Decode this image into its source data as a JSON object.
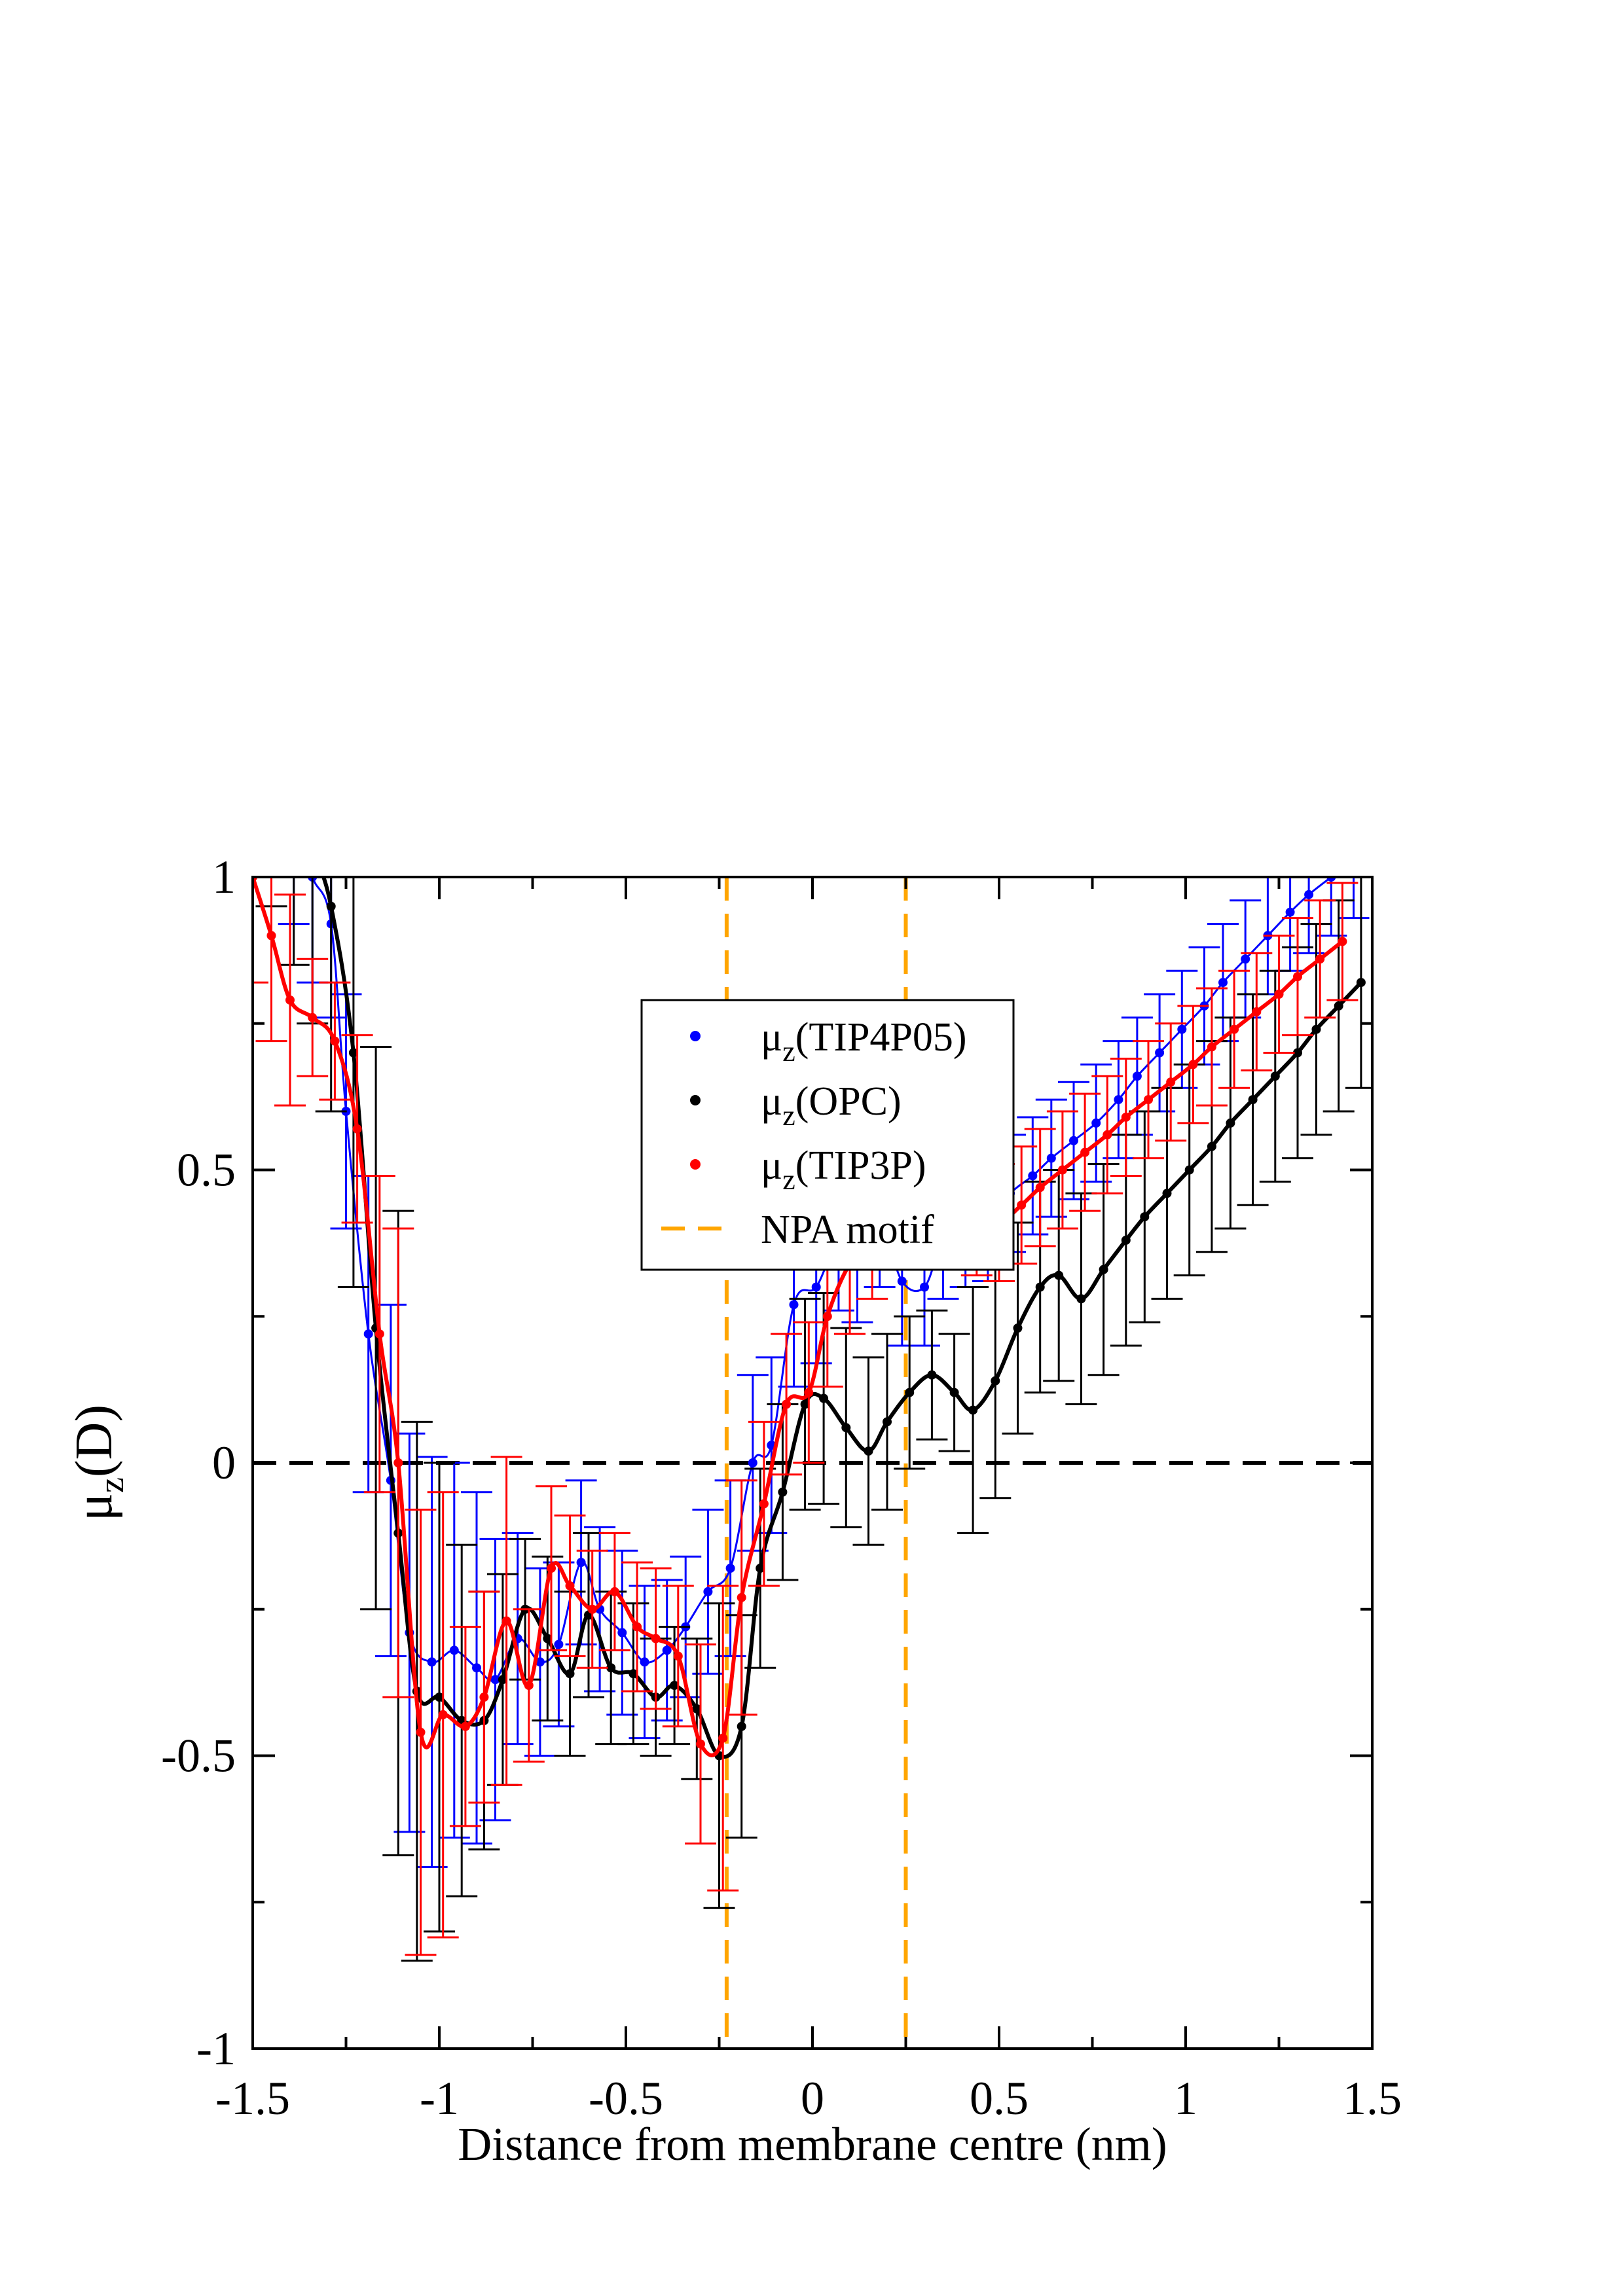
{
  "chart_data": {
    "type": "line",
    "xlabel": "Distance from membrane centre (nm)",
    "ylabel": {
      "mu": "μ",
      "sub": "z",
      "rest": "(D)"
    },
    "xlim": [
      -1.5,
      1.5
    ],
    "ylim": [
      -1,
      1
    ],
    "x_ticks": [
      -1.5,
      -1,
      -0.5,
      0,
      0.5,
      1,
      1.5
    ],
    "x_tick_labels": [
      "-1.5",
      "-1",
      "-0.5",
      "0",
      "0.5",
      "1",
      "1.5"
    ],
    "y_ticks": [
      -1,
      -0.5,
      0,
      0.5,
      1
    ],
    "y_tick_labels": [
      "-1",
      "-0.5",
      "0",
      "0.5",
      "1"
    ],
    "zero_line": {
      "y": 0,
      "style": "dashed",
      "color": "#000000"
    },
    "npa_motif_lines": [
      -0.23,
      0.25
    ],
    "legend": {
      "placement": "top-left",
      "entries": [
        {
          "label_main": "μ",
          "label_sub": "z",
          "label_rest": "(TIP4P05)",
          "color": "#0000ff",
          "kind": "dot"
        },
        {
          "label_main": "μ",
          "label_sub": "z",
          "label_rest": "(OPC)",
          "color": "#000000",
          "kind": "dot"
        },
        {
          "label_main": "μ",
          "label_sub": "z",
          "label_rest": "(TIP3P)",
          "color": "#ff0000",
          "kind": "dot"
        },
        {
          "label_main": "NPA motif",
          "label_sub": "",
          "label_rest": "",
          "color": "#ffa500",
          "kind": "dash"
        }
      ]
    },
    "series": [
      {
        "name": "μz(TIP4P05)",
        "color": "#0000ff",
        "width": 3,
        "x": [
          -1.45,
          -1.39,
          -1.34,
          -1.29,
          -1.25,
          -1.19,
          -1.13,
          -1.08,
          -1.02,
          -0.96,
          -0.9,
          -0.85,
          -0.79,
          -0.73,
          -0.68,
          -0.62,
          -0.57,
          -0.51,
          -0.45,
          -0.39,
          -0.34,
          -0.28,
          -0.22,
          -0.16,
          -0.11,
          -0.05,
          0.01,
          0.07,
          0.12,
          0.18,
          0.24,
          0.3,
          0.35,
          0.41,
          0.47,
          0.53,
          0.59,
          0.64,
          0.7,
          0.76,
          0.82,
          0.87,
          0.93,
          0.99,
          1.05,
          1.1,
          1.16,
          1.22,
          1.28,
          1.33,
          1.39,
          1.45
        ],
        "y": [
          1.2,
          1.1,
          1.0,
          0.92,
          0.6,
          0.22,
          -0.03,
          -0.29,
          -0.34,
          -0.32,
          -0.35,
          -0.37,
          -0.3,
          -0.34,
          -0.31,
          -0.17,
          -0.25,
          -0.29,
          -0.34,
          -0.32,
          -0.28,
          -0.22,
          -0.18,
          0.0,
          0.03,
          0.27,
          0.3,
          0.38,
          0.35,
          0.41,
          0.31,
          0.3,
          0.38,
          0.4,
          0.41,
          0.46,
          0.49,
          0.52,
          0.55,
          0.58,
          0.62,
          0.66,
          0.7,
          0.74,
          0.78,
          0.82,
          0.86,
          0.9,
          0.94,
          0.97,
          1.0,
          1.03
        ],
        "err": [
          0.18,
          0.18,
          0.18,
          0.16,
          0.2,
          0.27,
          0.3,
          0.34,
          0.35,
          0.32,
          0.3,
          0.24,
          0.18,
          0.16,
          0.14,
          0.14,
          0.14,
          0.14,
          0.13,
          0.12,
          0.12,
          0.14,
          0.15,
          0.15,
          0.15,
          0.14,
          0.13,
          0.12,
          0.11,
          0.11,
          0.11,
          0.1,
          0.1,
          0.1,
          0.1,
          0.1,
          0.1,
          0.1,
          0.1,
          0.1,
          0.1,
          0.1,
          0.1,
          0.1,
          0.1,
          0.1,
          0.1,
          0.1,
          0.1,
          0.1,
          0.1,
          0.1
        ]
      },
      {
        "name": "μz(OPC)",
        "color": "#000000",
        "width": 6,
        "x": [
          -1.45,
          -1.39,
          -1.34,
          -1.29,
          -1.23,
          -1.17,
          -1.11,
          -1.06,
          -1.0,
          -0.94,
          -0.88,
          -0.83,
          -0.77,
          -0.71,
          -0.65,
          -0.6,
          -0.54,
          -0.48,
          -0.42,
          -0.37,
          -0.31,
          -0.25,
          -0.19,
          -0.14,
          -0.08,
          -0.02,
          0.03,
          0.09,
          0.15,
          0.2,
          0.26,
          0.32,
          0.38,
          0.43,
          0.49,
          0.55,
          0.61,
          0.66,
          0.72,
          0.78,
          0.84,
          0.89,
          0.95,
          1.01,
          1.07,
          1.12,
          1.18,
          1.24,
          1.3,
          1.35,
          1.41,
          1.47
        ],
        "y": [
          1.25,
          1.15,
          1.05,
          0.95,
          0.7,
          0.23,
          -0.12,
          -0.39,
          -0.4,
          -0.44,
          -0.44,
          -0.37,
          -0.25,
          -0.3,
          -0.36,
          -0.26,
          -0.35,
          -0.36,
          -0.4,
          -0.38,
          -0.42,
          -0.5,
          -0.45,
          -0.18,
          -0.05,
          0.1,
          0.11,
          0.06,
          0.02,
          0.07,
          0.12,
          0.15,
          0.12,
          0.09,
          0.14,
          0.23,
          0.3,
          0.32,
          0.28,
          0.33,
          0.38,
          0.42,
          0.46,
          0.5,
          0.54,
          0.58,
          0.62,
          0.66,
          0.7,
          0.74,
          0.78,
          0.82
        ],
        "err": [
          0.3,
          0.3,
          0.3,
          0.35,
          0.4,
          0.48,
          0.55,
          0.46,
          0.4,
          0.3,
          0.22,
          0.18,
          0.12,
          0.14,
          0.14,
          0.14,
          0.13,
          0.12,
          0.1,
          0.1,
          0.12,
          0.26,
          0.19,
          0.17,
          0.15,
          0.18,
          0.18,
          0.17,
          0.16,
          0.15,
          0.13,
          0.11,
          0.1,
          0.21,
          0.2,
          0.18,
          0.18,
          0.18,
          0.18,
          0.18,
          0.18,
          0.18,
          0.18,
          0.18,
          0.18,
          0.18,
          0.18,
          0.18,
          0.18,
          0.18,
          0.18,
          0.18
        ]
      },
      {
        "name": "μz(TIP3P)",
        "color": "#ff0000",
        "width": 6,
        "x": [
          -1.5,
          -1.45,
          -1.4,
          -1.34,
          -1.28,
          -1.22,
          -1.16,
          -1.11,
          -1.05,
          -0.99,
          -0.93,
          -0.88,
          -0.82,
          -0.76,
          -0.7,
          -0.65,
          -0.59,
          -0.53,
          -0.47,
          -0.42,
          -0.36,
          -0.3,
          -0.24,
          -0.19,
          -0.13,
          -0.07,
          -0.01,
          0.04,
          0.1,
          0.16,
          0.22,
          0.27,
          0.33,
          0.39,
          0.44,
          0.5,
          0.56,
          0.61,
          0.67,
          0.73,
          0.79,
          0.84,
          0.9,
          0.96,
          1.02,
          1.07,
          1.13,
          1.19,
          1.25,
          1.3,
          1.36,
          1.42
        ],
        "y": [
          1.0,
          0.9,
          0.79,
          0.76,
          0.72,
          0.57,
          0.22,
          0.0,
          -0.46,
          -0.43,
          -0.45,
          -0.4,
          -0.27,
          -0.38,
          -0.18,
          -0.21,
          -0.25,
          -0.22,
          -0.28,
          -0.3,
          -0.33,
          -0.48,
          -0.47,
          -0.23,
          -0.07,
          0.1,
          0.12,
          0.25,
          0.34,
          0.38,
          0.48,
          0.47,
          0.5,
          0.49,
          0.42,
          0.41,
          0.44,
          0.47,
          0.5,
          0.53,
          0.56,
          0.59,
          0.62,
          0.65,
          0.68,
          0.71,
          0.74,
          0.77,
          0.8,
          0.83,
          0.86,
          0.89
        ],
        "err": [
          0.18,
          0.18,
          0.18,
          0.1,
          0.1,
          0.16,
          0.27,
          0.4,
          0.38,
          0.38,
          0.17,
          0.18,
          0.28,
          0.13,
          0.14,
          0.12,
          0.1,
          0.1,
          0.11,
          0.12,
          0.12,
          0.17,
          0.26,
          0.2,
          0.14,
          0.12,
          0.12,
          0.12,
          0.12,
          0.1,
          0.1,
          0.08,
          0.1,
          0.12,
          0.1,
          0.1,
          0.1,
          0.1,
          0.1,
          0.1,
          0.1,
          0.1,
          0.1,
          0.1,
          0.1,
          0.1,
          0.1,
          0.1,
          0.1,
          0.1,
          0.1,
          0.1
        ]
      }
    ]
  }
}
